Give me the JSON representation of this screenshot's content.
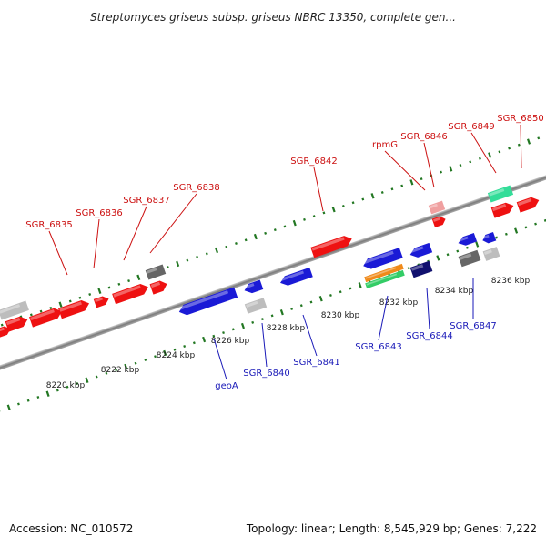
{
  "title": "Streptomyces griseus subsp. griseus NBRC 13350, complete gen...",
  "accession": "Accession: NC_010572",
  "topology": "Topology: linear; Length: 8,545,929 bp; Genes: 7,222",
  "colors": {
    "forward_gene": "#ee1111",
    "reverse_gene": "#1a1ad6",
    "pseudo_gray": "#bdbdbd",
    "dark_gray": "#666666",
    "rna_green": "#33cc66",
    "rna_orange": "#f08a1a",
    "teal": "#33dd99",
    "navy": "#10106e",
    "pink": "#f0a0a0",
    "label_red": "#cc1111",
    "label_blue": "#1a1ab8",
    "dots": "#227722",
    "axis": "#888888"
  },
  "ticks": [
    "8220 kbp",
    "8222 kbp",
    "8224 kbp",
    "8226 kbp",
    "8228 kbp",
    "8230 kbp",
    "8232 kbp",
    "8234 kbp",
    "8236 kbp"
  ],
  "forward_labels": [
    "SGR_6835",
    "SGR_6836",
    "SGR_6837",
    "SGR_6838",
    "SGR_6842",
    "rpmG",
    "SGR_6846",
    "SGR_6849",
    "SGR_6850"
  ],
  "reverse_labels": [
    "geoA",
    "SGR_6840",
    "SGR_6841",
    "SGR_6843",
    "SGR_6844",
    "SGR_6847"
  ]
}
